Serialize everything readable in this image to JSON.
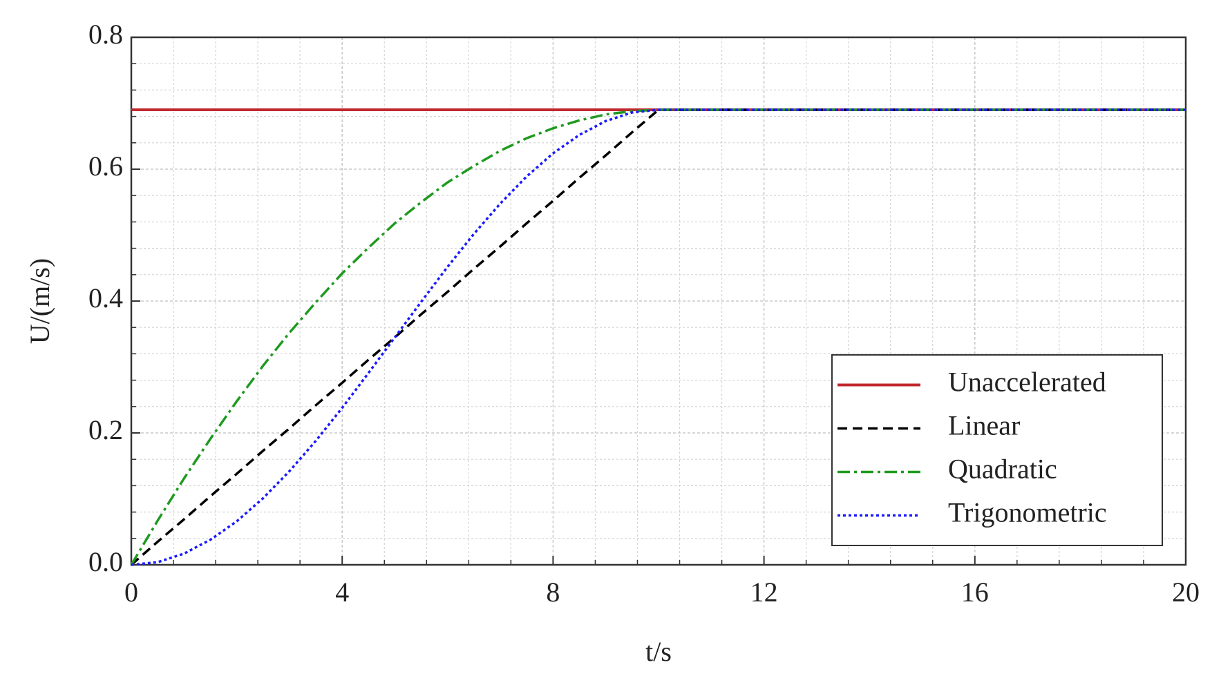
{
  "chart_data": {
    "type": "line",
    "xlabel": "t/s",
    "ylabel": "U/(m/s)",
    "x": [
      0,
      0.5,
      1,
      1.5,
      2,
      2.5,
      3,
      3.5,
      4,
      4.5,
      5,
      5.5,
      6,
      6.5,
      7,
      7.5,
      8,
      8.5,
      9,
      9.5,
      10,
      20
    ],
    "series": [
      {
        "name": "Unaccelerated",
        "color": "#c0282d",
        "linestyle": "solid",
        "values": [
          0.69,
          0.69,
          0.69,
          0.69,
          0.69,
          0.69,
          0.69,
          0.69,
          0.69,
          0.69,
          0.69,
          0.69,
          0.69,
          0.69,
          0.69,
          0.69,
          0.69,
          0.69,
          0.69,
          0.69,
          0.69,
          0.69
        ]
      },
      {
        "name": "Linear",
        "color": "#000000",
        "linestyle": "dashed",
        "values": [
          0,
          0.035,
          0.069,
          0.104,
          0.138,
          0.173,
          0.207,
          0.242,
          0.276,
          0.311,
          0.345,
          0.38,
          0.414,
          0.449,
          0.483,
          0.518,
          0.552,
          0.587,
          0.621,
          0.656,
          0.69,
          0.69
        ]
      },
      {
        "name": "Quadratic",
        "color": "#1f9a1f",
        "linestyle": "dashdot",
        "values": [
          0,
          0.067,
          0.131,
          0.191,
          0.248,
          0.302,
          0.352,
          0.398,
          0.442,
          0.481,
          0.518,
          0.55,
          0.58,
          0.605,
          0.628,
          0.647,
          0.662,
          0.674,
          0.683,
          0.688,
          0.69,
          0.69
        ]
      },
      {
        "name": "Trigonometric",
        "color": "#1a1aff",
        "linestyle": "dotted",
        "values": [
          0,
          0.004,
          0.017,
          0.038,
          0.066,
          0.101,
          0.142,
          0.188,
          0.238,
          0.291,
          0.345,
          0.399,
          0.452,
          0.502,
          0.548,
          0.589,
          0.624,
          0.652,
          0.673,
          0.686,
          0.69,
          0.69
        ]
      }
    ],
    "xlim": [
      0,
      20
    ],
    "xticks": [
      0,
      4,
      8,
      12,
      16,
      20
    ],
    "ylim": [
      0,
      0.8
    ],
    "yticks": [
      {
        "value": 0,
        "label": "0.0"
      },
      0.2,
      0.4,
      0.6,
      0.8
    ],
    "grid": true,
    "legend": "lower right"
  }
}
